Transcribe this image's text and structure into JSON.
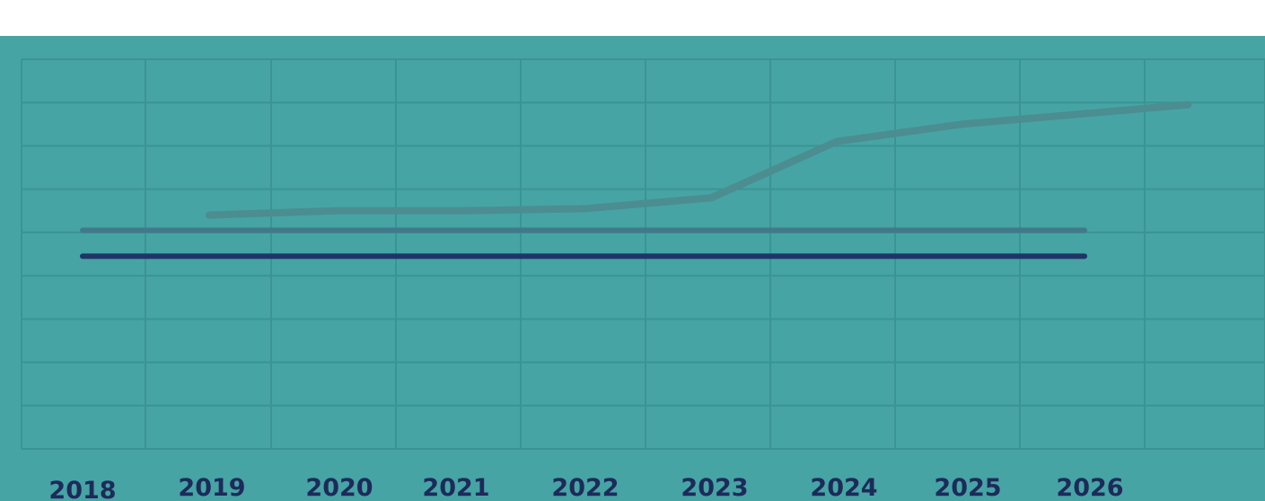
{
  "chart_data": {
    "type": "line",
    "title": "",
    "xlabel": "",
    "ylabel": "",
    "categories": [
      "2018",
      "2019",
      "2020",
      "2021",
      "2022",
      "2023",
      "2024",
      "2025",
      "2026"
    ],
    "ylim": [
      0,
      9
    ],
    "grid": true,
    "series": [
      {
        "key": "rising",
        "color": "#4b8d90",
        "x": [
          2019,
          2020,
          2021,
          2022,
          2023,
          2024,
          2025,
          2026,
          2026.8
        ],
        "values": [
          5.4,
          5.5,
          5.5,
          5.55,
          5.8,
          7.1,
          7.5,
          7.75,
          7.95
        ]
      },
      {
        "key": "flat-upper",
        "color": "#41798a",
        "x": [
          2018,
          2026
        ],
        "values": [
          5.05,
          5.05
        ]
      },
      {
        "key": "flat-lower",
        "color": "#1f3468",
        "x": [
          2018,
          2026
        ],
        "values": [
          4.45,
          4.45
        ]
      }
    ],
    "colors": {
      "panel_background": "#46a4a4",
      "grid": "#3b9494",
      "tick_label": "#1e2a5a"
    }
  }
}
